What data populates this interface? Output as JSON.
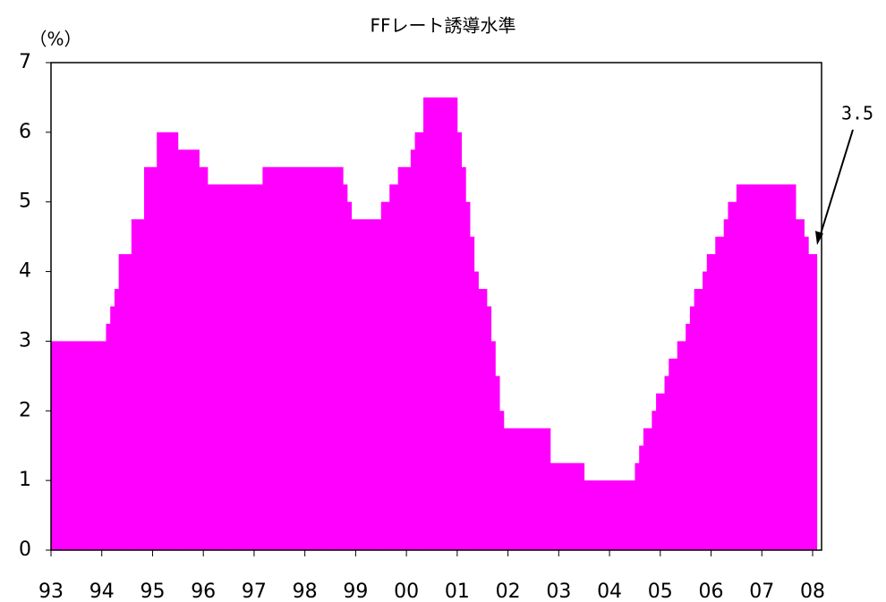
{
  "chart_data": {
    "type": "bar",
    "title": "FFレート誘導水準",
    "y_label": "（%）",
    "categories": [
      "93",
      null,
      null,
      null,
      null,
      null,
      null,
      null,
      null,
      null,
      null,
      null,
      "94",
      null,
      null,
      null,
      null,
      null,
      null,
      null,
      null,
      null,
      null,
      null,
      "95",
      null,
      null,
      null,
      null,
      null,
      null,
      null,
      null,
      null,
      null,
      null,
      "96",
      null,
      null,
      null,
      null,
      null,
      null,
      null,
      null,
      null,
      null,
      null,
      "97",
      null,
      null,
      null,
      null,
      null,
      null,
      null,
      null,
      null,
      null,
      null,
      "98",
      null,
      null,
      null,
      null,
      null,
      null,
      null,
      null,
      null,
      null,
      null,
      "99",
      null,
      null,
      null,
      null,
      null,
      null,
      null,
      null,
      null,
      null,
      null,
      "00",
      null,
      null,
      null,
      null,
      null,
      null,
      null,
      null,
      null,
      null,
      null,
      "01",
      null,
      null,
      null,
      null,
      null,
      null,
      null,
      null,
      null,
      null,
      null,
      "02",
      null,
      null,
      null,
      null,
      null,
      null,
      null,
      null,
      null,
      null,
      null,
      "03",
      null,
      null,
      null,
      null,
      null,
      null,
      null,
      null,
      null,
      null,
      null,
      "04",
      null,
      null,
      null,
      null,
      null,
      null,
      null,
      null,
      null,
      null,
      null,
      "05",
      null,
      null,
      null,
      null,
      null,
      null,
      null,
      null,
      null,
      null,
      null,
      "06",
      null,
      null,
      null,
      null,
      null,
      null,
      null,
      null,
      null,
      null,
      null,
      "07",
      null,
      null,
      null,
      null,
      null,
      null,
      null,
      null,
      null,
      null,
      null,
      "08"
    ],
    "values": [
      3,
      3,
      3,
      3,
      3,
      3,
      3,
      3,
      3,
      3,
      3,
      3,
      3,
      3.25,
      3.5,
      3.75,
      4.25,
      4.25,
      4.25,
      4.75,
      4.75,
      4.75,
      5.5,
      5.5,
      5.5,
      6,
      6,
      6,
      6,
      6,
      5.75,
      5.75,
      5.75,
      5.75,
      5.75,
      5.5,
      5.5,
      5.25,
      5.25,
      5.25,
      5.25,
      5.25,
      5.25,
      5.25,
      5.25,
      5.25,
      5.25,
      5.25,
      5.25,
      5.25,
      5.5,
      5.5,
      5.5,
      5.5,
      5.5,
      5.5,
      5.5,
      5.5,
      5.5,
      5.5,
      5.5,
      5.5,
      5.5,
      5.5,
      5.5,
      5.5,
      5.5,
      5.5,
      5.5,
      5.25,
      5,
      4.75,
      4.75,
      4.75,
      4.75,
      4.75,
      4.75,
      4.75,
      5,
      5,
      5.25,
      5.25,
      5.5,
      5.5,
      5.5,
      5.75,
      6,
      6,
      6.5,
      6.5,
      6.5,
      6.5,
      6.5,
      6.5,
      6.5,
      6.5,
      6,
      5.5,
      5,
      4.5,
      4,
      3.75,
      3.75,
      3.5,
      3,
      2.5,
      2,
      1.75,
      1.75,
      1.75,
      1.75,
      1.75,
      1.75,
      1.75,
      1.75,
      1.75,
      1.75,
      1.75,
      1.25,
      1.25,
      1.25,
      1.25,
      1.25,
      1.25,
      1.25,
      1.25,
      1,
      1,
      1,
      1,
      1,
      1,
      1,
      1,
      1,
      1,
      1,
      1,
      1.25,
      1.5,
      1.75,
      1.75,
      2,
      2.25,
      2.25,
      2.5,
      2.75,
      2.75,
      3,
      3,
      3.25,
      3.5,
      3.75,
      3.75,
      4,
      4.25,
      4.25,
      4.5,
      4.5,
      4.75,
      5,
      5,
      5.25,
      5.25,
      5.25,
      5.25,
      5.25,
      5.25,
      5.25,
      5.25,
      5.25,
      5.25,
      5.25,
      5.25,
      5.25,
      5.25,
      4.75,
      4.75,
      4.5,
      4.25,
      4.25
    ],
    "color": "#ff00ff",
    "ylim": [
      0,
      7
    ],
    "yticks": [
      0,
      1,
      2,
      3,
      4,
      5,
      6,
      7
    ],
    "grid": false,
    "annotation": "3.5"
  }
}
